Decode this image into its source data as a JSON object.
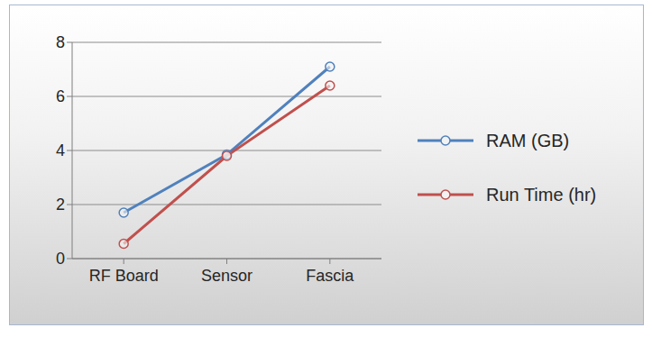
{
  "chart_data": {
    "type": "line",
    "categories": [
      "RF Board",
      "Sensor",
      "Fascia"
    ],
    "series": [
      {
        "name": "RAM (GB)",
        "color": "#4f81bd",
        "values": [
          1.7,
          3.85,
          7.1
        ],
        "marker": "circle"
      },
      {
        "name": "Run Time (hr)",
        "color": "#c0504d",
        "values": [
          0.55,
          3.8,
          6.4
        ],
        "marker": "circle"
      }
    ],
    "ylim": [
      0,
      8
    ],
    "yticks": [
      0,
      2,
      4,
      6,
      8
    ],
    "grid": true,
    "legend": "right"
  }
}
